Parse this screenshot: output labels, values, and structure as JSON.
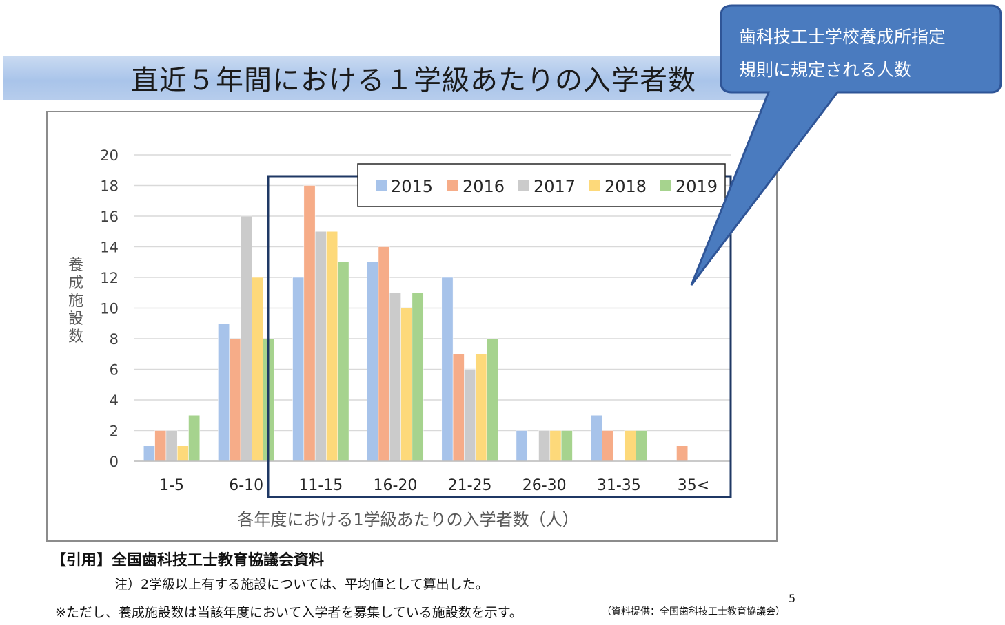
{
  "title": "直近５年間における１学級あたりの入学者数",
  "callout": {
    "line1": "歯科技工士学校養成所指定",
    "line2": "規則に規定される人数"
  },
  "citation": "【引用】全国歯科技工士教育協議会資料",
  "note1": "注）2学級以上有する施設については、平均値として算出した。",
  "note2": "※ただし、養成施設数は当該年度において入学者を募集している施設数を示す。",
  "source": "（資料提供：全国歯科技工士教育協議会）",
  "page_number": "5",
  "colors": {
    "2015": "#a7c3ea",
    "2016": "#f6ac88",
    "2017": "#cbcbcb",
    "2018": "#fdd97a",
    "2019": "#a6d38e",
    "callout": "#4a7bbf",
    "highlight_box": "#1f3864"
  },
  "chart_data": {
    "type": "bar",
    "categories": [
      "1-5",
      "6-10",
      "11-15",
      "16-20",
      "21-25",
      "26-30",
      "31-35",
      "35<"
    ],
    "series": [
      {
        "name": "2015",
        "values": [
          1,
          9,
          12,
          13,
          12,
          2,
          3,
          0
        ]
      },
      {
        "name": "2016",
        "values": [
          2,
          8,
          18,
          14,
          7,
          0,
          2,
          1
        ]
      },
      {
        "name": "2017",
        "values": [
          2,
          16,
          15,
          11,
          6,
          2,
          0,
          0
        ]
      },
      {
        "name": "2018",
        "values": [
          1,
          12,
          15,
          10,
          7,
          2,
          2,
          0
        ]
      },
      {
        "name": "2019",
        "values": [
          3,
          8,
          13,
          11,
          8,
          2,
          2,
          0
        ]
      }
    ],
    "xlabel": "各年度における1学級あたりの入学者数（人）",
    "ylabel": "養成施設数",
    "ylim": [
      0,
      20
    ],
    "yticks": [
      0,
      2,
      4,
      6,
      8,
      10,
      12,
      14,
      16,
      18,
      20
    ],
    "grid": true,
    "legend": "top-right"
  }
}
